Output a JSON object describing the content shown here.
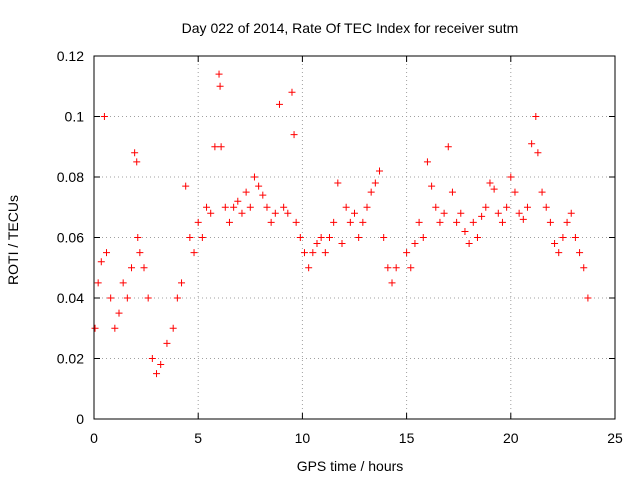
{
  "chart_data": {
    "type": "scatter",
    "title": "Day 022 of 2014, Rate Of TEC Index for receiver sutm",
    "xlabel": "GPS time / hours",
    "ylabel": "ROTI / TECUs",
    "xlim": [
      0,
      25
    ],
    "ylim": [
      0,
      0.12
    ],
    "xticks": [
      0,
      5,
      10,
      15,
      20,
      25
    ],
    "xtick_labels": [
      "0",
      "5",
      "10",
      "15",
      "20",
      "25"
    ],
    "yticks": [
      0,
      0.02,
      0.04,
      0.06,
      0.08,
      0.1,
      0.12
    ],
    "ytick_labels": [
      "0",
      "0.02",
      "0.04",
      "0.06",
      "0.08",
      "0.1",
      "0.12"
    ],
    "grid": true,
    "marker": "plus",
    "series": [
      {
        "name": "ROTI",
        "color": "#ff0000",
        "x": [
          0.05,
          0.2,
          0.35,
          0.5,
          0.6,
          0.8,
          1.0,
          1.2,
          1.4,
          1.6,
          1.8,
          1.95,
          2.05,
          2.1,
          2.2,
          2.4,
          2.6,
          2.8,
          3.0,
          3.2,
          3.5,
          3.8,
          4.0,
          4.2,
          4.4,
          4.6,
          4.8,
          5.0,
          5.2,
          5.4,
          5.6,
          5.8,
          6.0,
          6.05,
          6.1,
          6.3,
          6.5,
          6.7,
          6.9,
          7.1,
          7.3,
          7.5,
          7.7,
          7.9,
          8.1,
          8.3,
          8.5,
          8.7,
          8.9,
          9.1,
          9.3,
          9.5,
          9.6,
          9.7,
          9.9,
          10.1,
          10.3,
          10.5,
          10.7,
          10.9,
          11.1,
          11.3,
          11.5,
          11.7,
          11.9,
          12.1,
          12.3,
          12.5,
          12.7,
          12.9,
          13.1,
          13.3,
          13.5,
          13.7,
          13.9,
          14.1,
          14.3,
          14.5,
          15.0,
          15.2,
          15.4,
          15.6,
          15.8,
          16.0,
          16.2,
          16.4,
          16.6,
          16.8,
          17.0,
          17.2,
          17.4,
          17.6,
          17.8,
          18.0,
          18.2,
          18.4,
          18.6,
          18.8,
          19.0,
          19.2,
          19.4,
          19.6,
          19.8,
          20.0,
          20.2,
          20.4,
          20.6,
          20.8,
          21.0,
          21.2,
          21.3,
          21.5,
          21.7,
          21.9,
          22.1,
          22.3,
          22.5,
          22.7,
          22.9,
          23.1,
          23.3,
          23.5,
          23.7
        ],
        "y": [
          0.03,
          0.045,
          0.052,
          0.1,
          0.055,
          0.04,
          0.03,
          0.035,
          0.045,
          0.04,
          0.05,
          0.088,
          0.085,
          0.06,
          0.055,
          0.05,
          0.04,
          0.02,
          0.015,
          0.018,
          0.025,
          0.03,
          0.04,
          0.045,
          0.077,
          0.06,
          0.055,
          0.065,
          0.06,
          0.07,
          0.068,
          0.09,
          0.114,
          0.11,
          0.09,
          0.07,
          0.065,
          0.07,
          0.072,
          0.068,
          0.075,
          0.07,
          0.08,
          0.077,
          0.074,
          0.07,
          0.065,
          0.068,
          0.104,
          0.07,
          0.068,
          0.108,
          0.094,
          0.065,
          0.06,
          0.055,
          0.05,
          0.055,
          0.058,
          0.06,
          0.055,
          0.06,
          0.065,
          0.078,
          0.058,
          0.07,
          0.065,
          0.068,
          0.06,
          0.065,
          0.07,
          0.075,
          0.078,
          0.082,
          0.06,
          0.05,
          0.045,
          0.05,
          0.055,
          0.05,
          0.058,
          0.065,
          0.06,
          0.085,
          0.077,
          0.07,
          0.065,
          0.068,
          0.09,
          0.075,
          0.065,
          0.068,
          0.062,
          0.058,
          0.065,
          0.06,
          0.067,
          0.07,
          0.078,
          0.076,
          0.068,
          0.065,
          0.07,
          0.08,
          0.075,
          0.068,
          0.066,
          0.07,
          0.091,
          0.1,
          0.088,
          0.075,
          0.07,
          0.065,
          0.058,
          0.055,
          0.06,
          0.065,
          0.068,
          0.06,
          0.055,
          0.05,
          0.04
        ]
      }
    ]
  }
}
